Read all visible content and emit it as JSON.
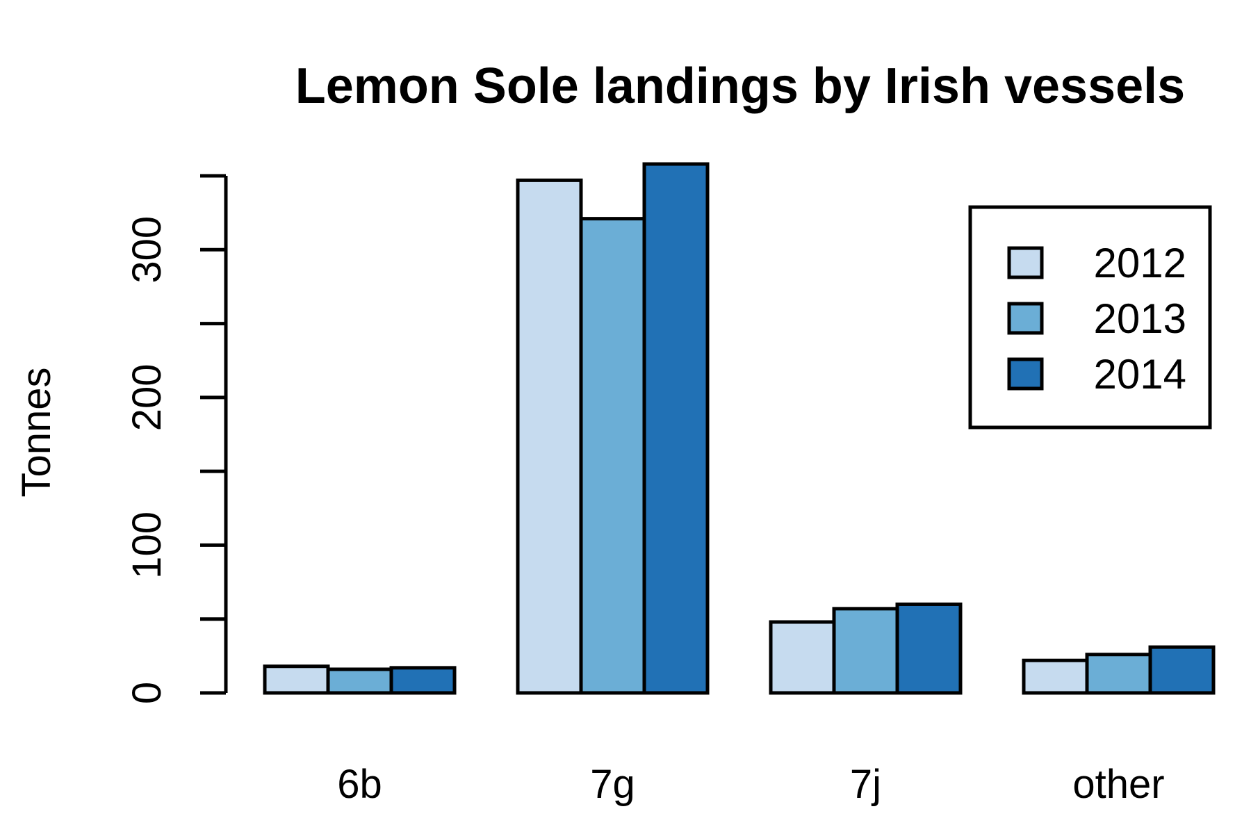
{
  "chart_data": {
    "type": "bar",
    "title": "Lemon Sole landings by Irish vessels",
    "xlabel": "",
    "ylabel": "Tonnes",
    "categories": [
      "6b",
      "7g",
      "7j",
      "other"
    ],
    "series": [
      {
        "name": "2012",
        "color": "#c6dbef",
        "values": [
          18,
          347,
          48,
          22
        ]
      },
      {
        "name": "2013",
        "color": "#6baed6",
        "values": [
          16,
          321,
          57,
          26
        ]
      },
      {
        "name": "2014",
        "color": "#2171b5",
        "values": [
          17,
          358,
          60,
          31
        ]
      }
    ],
    "ylim": [
      0,
      350
    ],
    "yticks": [
      0,
      50,
      100,
      150,
      200,
      250,
      300,
      350
    ],
    "ytick_labels": [
      "0",
      "",
      "100",
      "",
      "200",
      "",
      "300",
      ""
    ],
    "grid": false,
    "legend_position": "top-right",
    "bar_border_color": "#000000"
  }
}
